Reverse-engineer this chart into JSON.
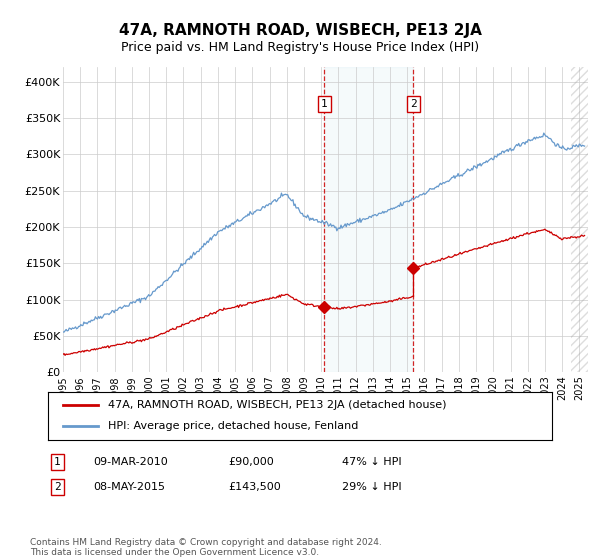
{
  "title": "47A, RAMNOTH ROAD, WISBECH, PE13 2JA",
  "subtitle": "Price paid vs. HM Land Registry's House Price Index (HPI)",
  "ylim": [
    0,
    420000
  ],
  "yticks": [
    0,
    50000,
    100000,
    150000,
    200000,
    250000,
    300000,
    350000,
    400000
  ],
  "ytick_labels": [
    "£0",
    "£50K",
    "£100K",
    "£150K",
    "£200K",
    "£250K",
    "£300K",
    "£350K",
    "£400K"
  ],
  "sale1_date_num": 2010.19,
  "sale1_price": 90000,
  "sale2_date_num": 2015.36,
  "sale2_price": 143500,
  "sale1_date_str": "09-MAR-2010",
  "sale1_price_str": "£90,000",
  "sale1_hpi_str": "47% ↓ HPI",
  "sale2_date_str": "08-MAY-2015",
  "sale2_price_str": "£143,500",
  "sale2_hpi_str": "29% ↓ HPI",
  "hpi_line_color": "#6699cc",
  "sale_line_color": "#cc0000",
  "vline_color": "#cc0000",
  "grid_color": "#cccccc",
  "background_color": "#ffffff",
  "legend_label_sale": "47A, RAMNOTH ROAD, WISBECH, PE13 2JA (detached house)",
  "legend_label_hpi": "HPI: Average price, detached house, Fenland",
  "footnote": "Contains HM Land Registry data © Crown copyright and database right 2024.\nThis data is licensed under the Open Government Licence v3.0.",
  "xlim_start": 1995.0,
  "xlim_end": 2025.5,
  "hatch_start": 2024.5
}
